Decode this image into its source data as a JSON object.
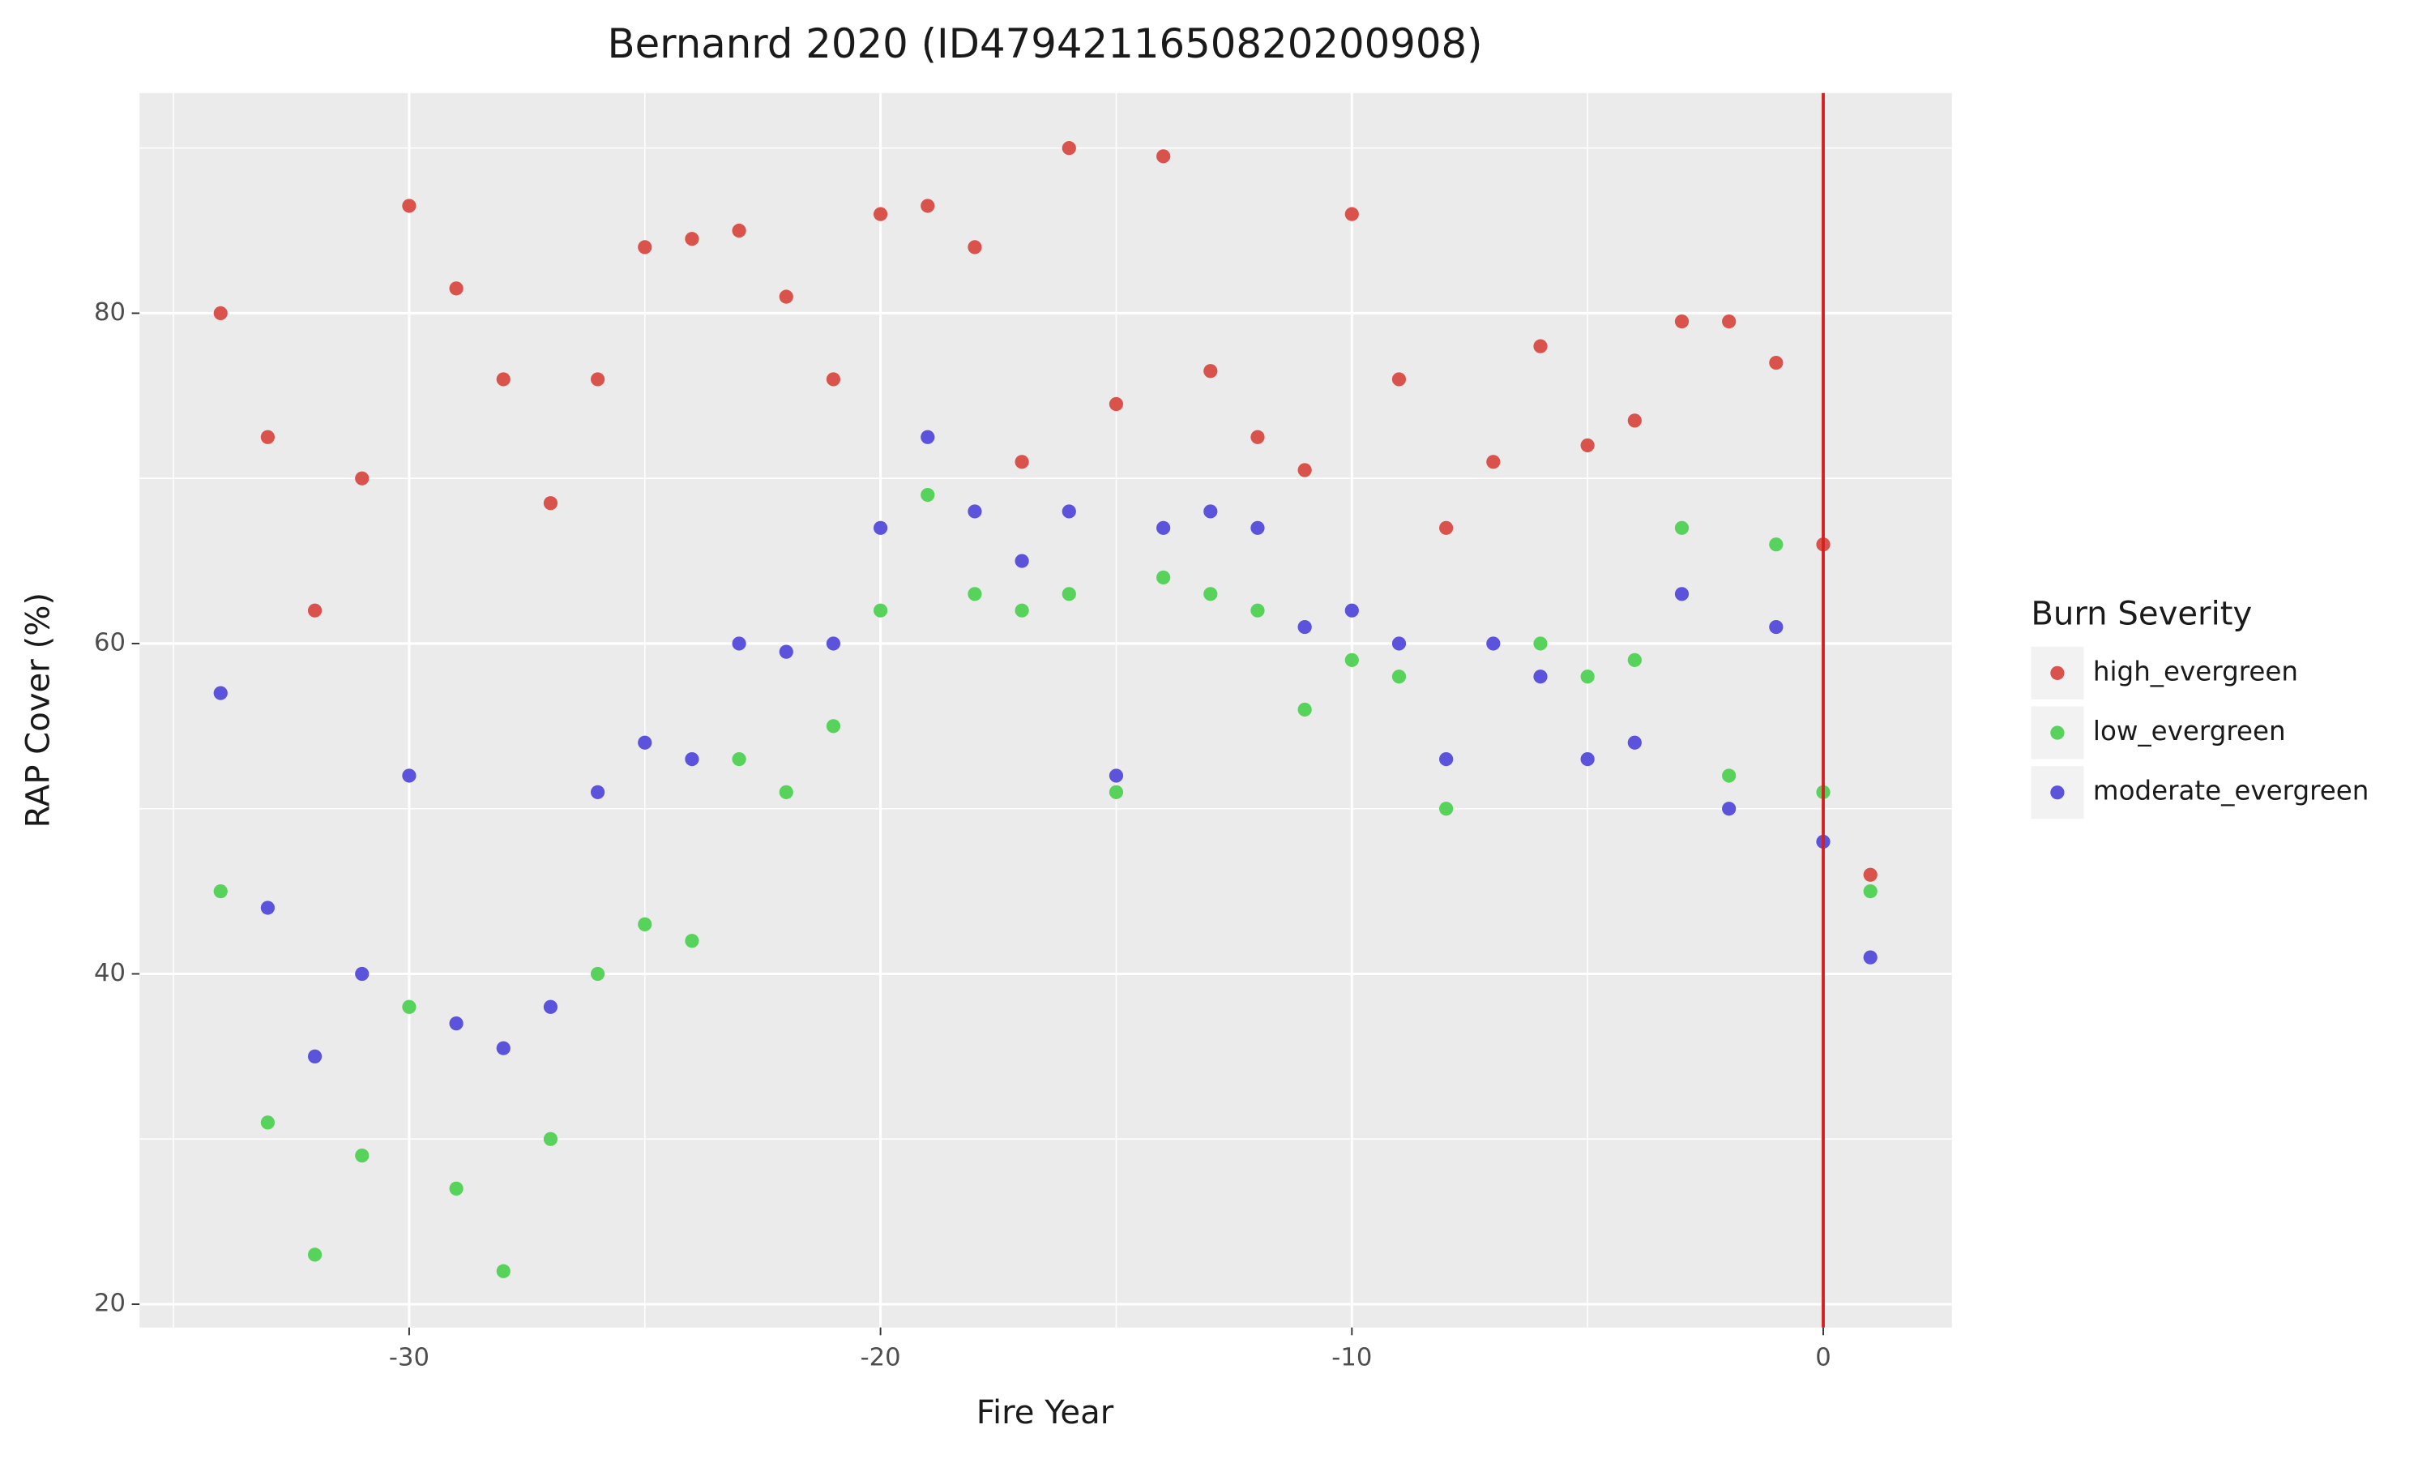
{
  "chart_data": {
    "type": "scatter",
    "title": "Bernanrd 2020 (ID4794211650820200908)",
    "x_label": "Fire Year",
    "y_label": "RAP Cover (%)",
    "legend_title": "Burn Severity",
    "legend": "right",
    "xlim": [
      -35.72,
      2.73
    ],
    "ylim": [
      18.59,
      93.33
    ],
    "xticks": [
      -30,
      -20,
      -10,
      0
    ],
    "yticks": [
      20,
      40,
      60,
      80
    ],
    "xminorticks": [
      -35,
      -25,
      -15,
      -5
    ],
    "yminorticks": [
      30,
      50,
      70,
      90
    ],
    "grid": true,
    "vline": {
      "x": 0,
      "color": "#d42020"
    },
    "series": [
      {
        "name": "high_evergreen",
        "color": "#d9534c",
        "x": [
          -34,
          -33,
          -32,
          -31,
          -30,
          -29,
          -28,
          -27,
          -26,
          -25,
          -24,
          -23,
          -22,
          -21,
          -20,
          -19,
          -18,
          -17,
          -16,
          -15,
          -14,
          -13,
          -12,
          -11,
          -10,
          -9,
          -8,
          -7,
          -6,
          -5,
          -4,
          -3,
          -2,
          -1,
          0,
          1
        ],
        "values": [
          80,
          72.5,
          62,
          70,
          86.5,
          81.5,
          76,
          68.5,
          76,
          84,
          84.5,
          85,
          81,
          76,
          86,
          86.5,
          84,
          71,
          90,
          74.5,
          89.5,
          76.5,
          72.5,
          70.5,
          86,
          76,
          67,
          71,
          78,
          72,
          73.5,
          79.5,
          79.5,
          77,
          66,
          46
        ]
      },
      {
        "name": "low_evergreen",
        "color": "#57d35b",
        "x": [
          -34,
          -33,
          -32,
          -31,
          -30,
          -29,
          -28,
          -27,
          -26,
          -25,
          -24,
          -23,
          -22,
          -21,
          -20,
          -19,
          -18,
          -17,
          -16,
          -15,
          -14,
          -13,
          -12,
          -11,
          -10,
          -9,
          -8,
          -6,
          -5,
          -4,
          -3,
          -2,
          -1,
          0,
          1
        ],
        "values": [
          45,
          31,
          23,
          29,
          38,
          27,
          22,
          30,
          40,
          43,
          42,
          53,
          51,
          55,
          62,
          69,
          63,
          62,
          63,
          51,
          64,
          63,
          62,
          56,
          59,
          58,
          50,
          60,
          58,
          59,
          67,
          52,
          66,
          51,
          45
        ]
      },
      {
        "name": "moderate_evergreen",
        "color": "#5b53dc",
        "x": [
          -34,
          -33,
          -32,
          -31,
          -30,
          -29,
          -28,
          -27,
          -26,
          -25,
          -24,
          -23,
          -22,
          -21,
          -20,
          -19,
          -18,
          -17,
          -16,
          -15,
          -14,
          -13,
          -12,
          -11,
          -10,
          -9,
          -8,
          -7,
          -6,
          -5,
          -4,
          -3,
          -2,
          -1,
          0,
          1
        ],
        "values": [
          57,
          44,
          35,
          40,
          52,
          37,
          35.5,
          38,
          51,
          54,
          53,
          60,
          59.5,
          60,
          67,
          72.5,
          68,
          65,
          68,
          52,
          67,
          68,
          67,
          61,
          62,
          60,
          53,
          60,
          58,
          53,
          54,
          63,
          50,
          61,
          48,
          41
        ]
      }
    ]
  }
}
